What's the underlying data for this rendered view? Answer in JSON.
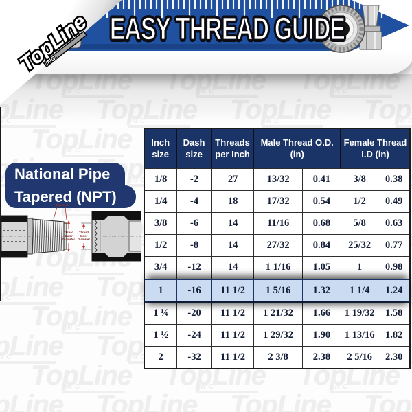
{
  "brand": {
    "name": "TopLine",
    "suffix": "INC."
  },
  "watermark": {
    "text": "TopLine",
    "suffix": "INC"
  },
  "banner": {
    "title": "EASY THREAD GUIDE"
  },
  "npt_label": {
    "line1": "National Pipe",
    "line2": "Tapered (NPT)"
  },
  "diagram": {
    "tapered_label": "Tapered",
    "outer_label_lines": [
      "Thread",
      "Outer",
      "Diameter"
    ],
    "inner_label_lines": [
      "Thread",
      "Inner",
      "Diameter"
    ]
  },
  "colors": {
    "navy": "#1b3468",
    "banner_blue": "#2050a0",
    "highlight_row": "#cbdcf2",
    "accent_red": "#a03028"
  },
  "chart_data": {
    "type": "table",
    "title": "EASY THREAD GUIDE",
    "subtitle": "National Pipe Tapered (NPT)",
    "header_groups": [
      {
        "label": "Inch size",
        "span": 1
      },
      {
        "label": "Dash size",
        "span": 1
      },
      {
        "label": "Threads per Inch",
        "span": 1
      },
      {
        "label": "Male Thread O.D. (in)",
        "span": 2
      },
      {
        "label": "Female Thread I.D (in)",
        "span": 2
      }
    ],
    "columns": [
      "Inch size",
      "Dash size",
      "Threads per Inch",
      "Male Thread O.D. fraction (in)",
      "Male Thread O.D. decimal (in)",
      "Female Thread I.D fraction (in)",
      "Female Thread I.D decimal (in)"
    ],
    "rows": [
      [
        "1/8",
        "-2",
        "27",
        "13/32",
        "0.41",
        "3/8",
        "0.38"
      ],
      [
        "1/4",
        "-4",
        "18",
        "17/32",
        "0.54",
        "1/2",
        "0.49"
      ],
      [
        "3/8",
        "-6",
        "14",
        "11/16",
        "0.68",
        "5/8",
        "0.63"
      ],
      [
        "1/2",
        "-8",
        "14",
        "27/32",
        "0.84",
        "25/32",
        "0.77"
      ],
      [
        "3/4",
        "-12",
        "14",
        "1 1/16",
        "1.05",
        "1",
        "0.98"
      ],
      [
        "1",
        "-16",
        "11 1/2",
        "1 5/16",
        "1.32",
        "1 1/4",
        "1.24"
      ],
      [
        "1 ¼",
        "-20",
        "11 1/2",
        "1 21/32",
        "1.66",
        "1 19/32",
        "1.58"
      ],
      [
        "1 ½",
        "-24",
        "11 1/2",
        "1 29/32",
        "1.90",
        "1 13/16",
        "1.82"
      ],
      [
        "2",
        "-32",
        "11 1/2",
        "2 3/8",
        "2.38",
        "2 5/16",
        "2.30"
      ]
    ],
    "highlighted_row_index": 5
  }
}
